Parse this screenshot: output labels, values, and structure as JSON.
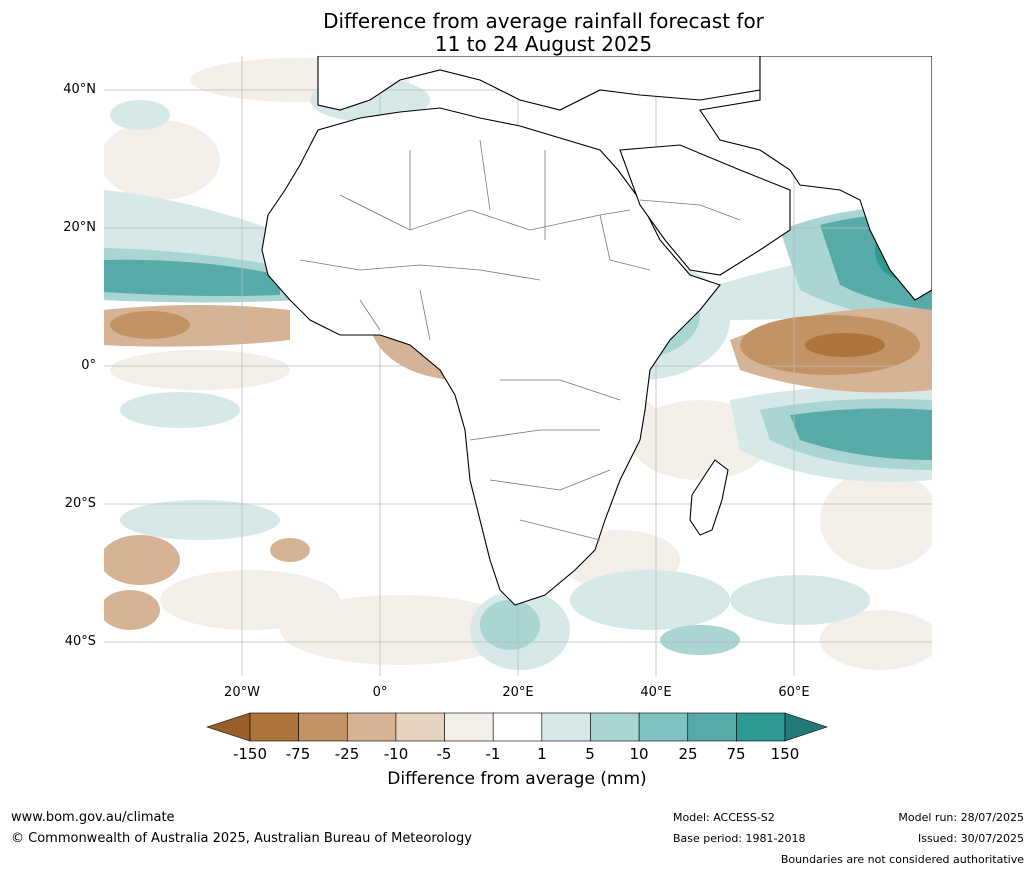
{
  "title_line1": "Difference from average rainfall forecast for",
  "title_line2": "11 to 24 August 2025",
  "lat_labels": [
    "40°N",
    "20°N",
    "0°",
    "20°S",
    "40°S"
  ],
  "lon_labels": [
    "20°W",
    "0°",
    "20°E",
    "40°E",
    "60°E"
  ],
  "colorbar": {
    "ticks": [
      "-150",
      "-75",
      "-25",
      "-10",
      "-5",
      "-1",
      "1",
      "5",
      "10",
      "25",
      "75",
      "150"
    ],
    "colors": [
      "#9a5e2a",
      "#ad743b",
      "#c29465",
      "#d5b394",
      "#e5d2c0",
      "#f3eee8",
      "#ffffff",
      "#d6e9e8",
      "#a9d5d2",
      "#80c2bf",
      "#56aba8",
      "#2e9893",
      "#237a76"
    ],
    "label": "Difference from average (mm)"
  },
  "footer": {
    "url": "www.bom.gov.au/climate",
    "copyright": "© Commonwealth of Australia 2025, Australian Bureau of Meteorology",
    "model": "Model: ACCESS-S2",
    "base_period": "Base period: 1981-2018",
    "model_run": "Model run: 28/07/2025",
    "issued": "Issued: 30/07/2025",
    "disclaimer": "Boundaries are not considered authoritative"
  }
}
